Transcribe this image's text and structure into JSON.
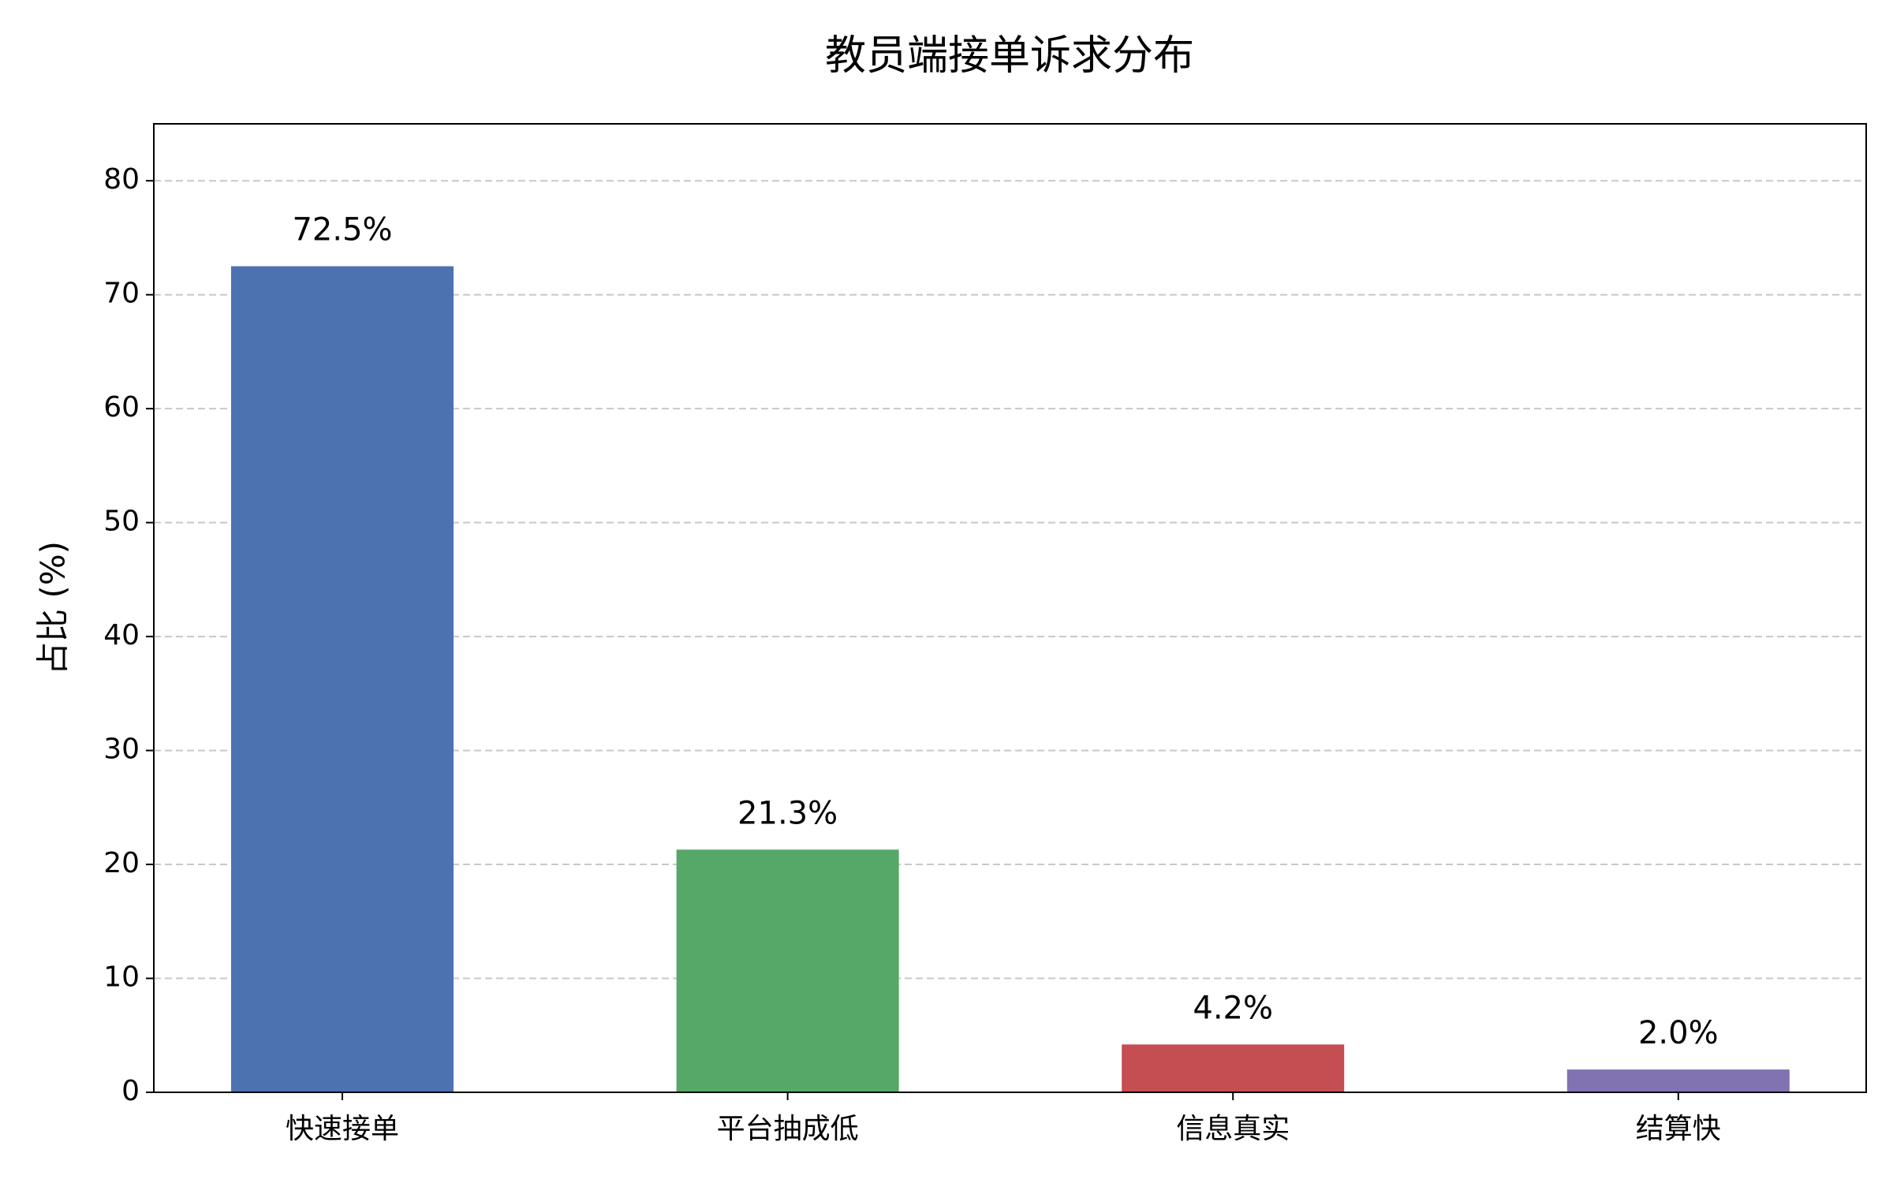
{
  "chart_data": {
    "type": "bar",
    "title": "教员端接单诉求分布",
    "ylabel": "占比 (%)",
    "categories": [
      "快速接单",
      "平台抽成低",
      "信息真实",
      "结算快"
    ],
    "values": [
      72.5,
      21.3,
      4.2,
      2.0
    ],
    "value_labels": [
      "72.5%",
      "21.3%",
      "4.2%",
      "2.0%"
    ],
    "colors": [
      "#4c72b0",
      "#55a868",
      "#c44e52",
      "#8172b2"
    ],
    "ylim": [
      0,
      85
    ],
    "yticks": [
      0,
      10,
      20,
      30,
      40,
      50,
      60,
      70,
      80
    ],
    "grid": true
  }
}
